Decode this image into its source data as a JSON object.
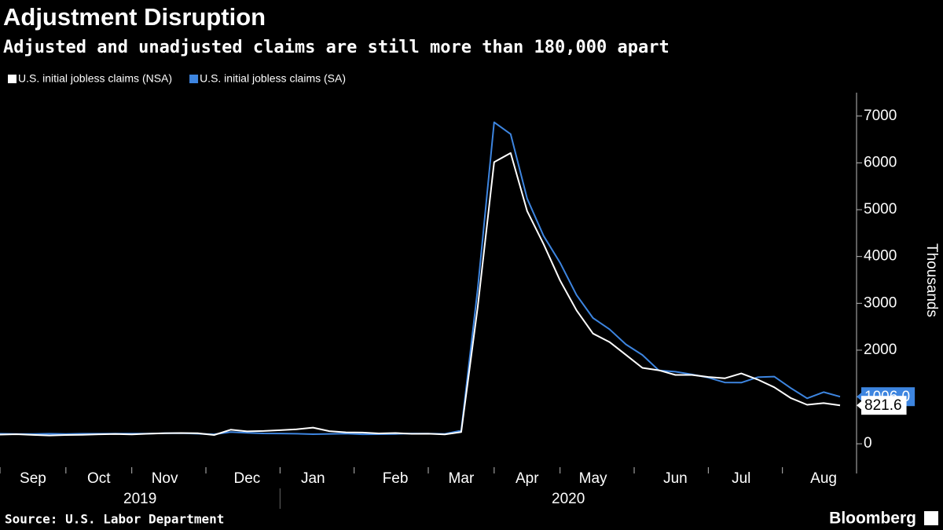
{
  "chart_data": {
    "type": "line",
    "title": "Adjustment Disruption",
    "subtitle": "Adjusted and unadjusted claims are still more than 180,000 apart",
    "y_label": "Thousands",
    "source": "Source: U.S. Labor Department",
    "brand": "Bloomberg",
    "categories": [
      null,
      null,
      "Sep",
      null,
      null,
      null,
      "Oct",
      null,
      null,
      null,
      "Nov",
      null,
      null,
      null,
      null,
      "Dec",
      null,
      null,
      null,
      "Jan",
      null,
      null,
      null,
      null,
      "Feb",
      null,
      null,
      null,
      "Mar",
      null,
      null,
      null,
      "Apr",
      null,
      null,
      null,
      "May",
      null,
      null,
      null,
      null,
      "Jun",
      null,
      null,
      null,
      "Jul",
      null,
      null,
      null,
      null,
      "Aug",
      null
    ],
    "years": [
      "2019",
      "2020"
    ],
    "series": [
      {
        "name": "U.S. initial jobless claims (SA)",
        "color": "#3d85e0",
        "end_label": "1006.0",
        "values": [
          215,
          208,
          210,
          215,
          210,
          215,
          215,
          216,
          218,
          218,
          226,
          228,
          215,
          203,
          252,
          235,
          222,
          220,
          214,
          204,
          211,
          217,
          202,
          205,
          210,
          220,
          217,
          211,
          282,
          3307,
          6867,
          6615,
          5237,
          4442,
          3867,
          3176,
          2687,
          2446,
          2123,
          1897,
          1566,
          1540,
          1482,
          1413,
          1310,
          1307,
          1422,
          1435,
          1191,
          971,
          1104,
          1006
        ]
      },
      {
        "name": "U.S. initial jobless claims (NSA)",
        "color": "#ffffff",
        "end_label": "821.6",
        "values": [
          196,
          204,
          190,
          178,
          188,
          192,
          202,
          207,
          200,
          215,
          225,
          230,
          225,
          188,
          300,
          265,
          274,
          290,
          310,
          345,
          270,
          245,
          240,
          222,
          230,
          212,
          215,
          199,
          251,
          2920,
          6015,
          6211,
          4971,
          4267,
          3489,
          2849,
          2354,
          2174,
          1900,
          1622,
          1570,
          1470,
          1471,
          1427,
          1399,
          1503,
          1371,
          1208,
          978,
          833,
          869,
          821.6
        ]
      }
    ],
    "legend_order": [
      1,
      0
    ],
    "ylim": [
      -500,
      7500
    ],
    "yticks": [
      0,
      1000,
      2000,
      3000,
      4000,
      5000,
      6000,
      7000
    ]
  }
}
